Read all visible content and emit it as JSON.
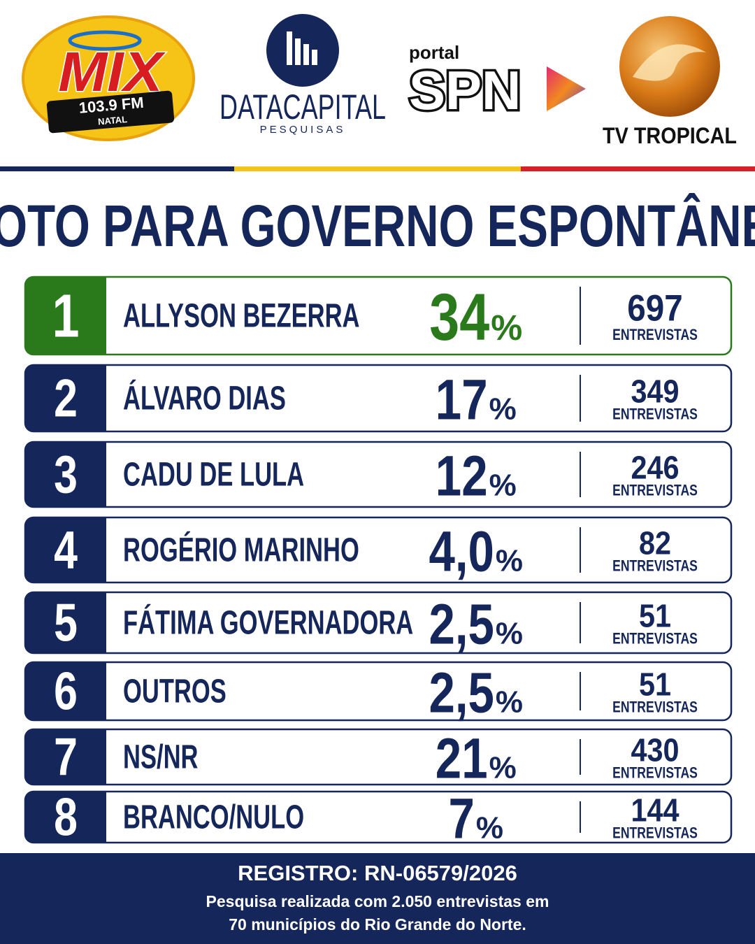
{
  "logos": {
    "mix": {
      "name": "MIX",
      "frequency": "103.9 FM",
      "city": "NATAL"
    },
    "datacapital": {
      "name": "DATACAPITAL",
      "subtitle": "PESQUISAS"
    },
    "spn": {
      "prefix": "portal",
      "name": "SPN"
    },
    "tv": {
      "name": "TV TROPICAL"
    }
  },
  "title": "VOTO PARA GOVERNO ESPONTÂNEA",
  "rows": [
    {
      "rank": 1,
      "name": "ALLYSON BEZERRA",
      "percent": "34",
      "unit": "%",
      "interviews": 697,
      "interviews_label": "ENTREVISTAS",
      "color": "#2a7a1c"
    },
    {
      "rank": 2,
      "name": "ÁLVARO DIAS",
      "percent": "17",
      "unit": "%",
      "interviews": 349,
      "interviews_label": "ENTREVISTAS",
      "color": "#14265a"
    },
    {
      "rank": 3,
      "name": "CADU DE LULA",
      "percent": "12",
      "unit": "%",
      "interviews": 246,
      "interviews_label": "ENTREVISTAS",
      "color": "#14265a"
    },
    {
      "rank": 4,
      "name": "ROGÉRIO MARINHO",
      "percent": "4,0",
      "unit": "%",
      "interviews": 82,
      "interviews_label": "ENTREVISTAS",
      "color": "#14265a"
    },
    {
      "rank": 5,
      "name": "FÁTIMA GOVERNADORA",
      "percent": "2,5",
      "unit": "%",
      "interviews": 51,
      "interviews_label": "ENTREVISTAS",
      "color": "#14265a"
    },
    {
      "rank": 6,
      "name": "OUTROS",
      "percent": "2,5",
      "unit": "%",
      "interviews": 51,
      "interviews_label": "ENTREVISTAS",
      "color": "#14265a"
    },
    {
      "rank": 7,
      "name": "NS/NR",
      "percent": "21",
      "unit": "%",
      "interviews": 430,
      "interviews_label": "ENTREVISTAS",
      "color": "#14265a"
    },
    {
      "rank": 8,
      "name": "BRANCO/NULO",
      "percent": "7",
      "unit": "%",
      "interviews": 144,
      "interviews_label": "ENTREVISTAS",
      "color": "#14265a"
    }
  ],
  "footer": {
    "registration": "REGISTRO: RN-06579/2026",
    "lines": [
      "Pesquisa realizada com 2.050 entrevistas em",
      "70 municípios do Rio Grande do Norte."
    ]
  }
}
